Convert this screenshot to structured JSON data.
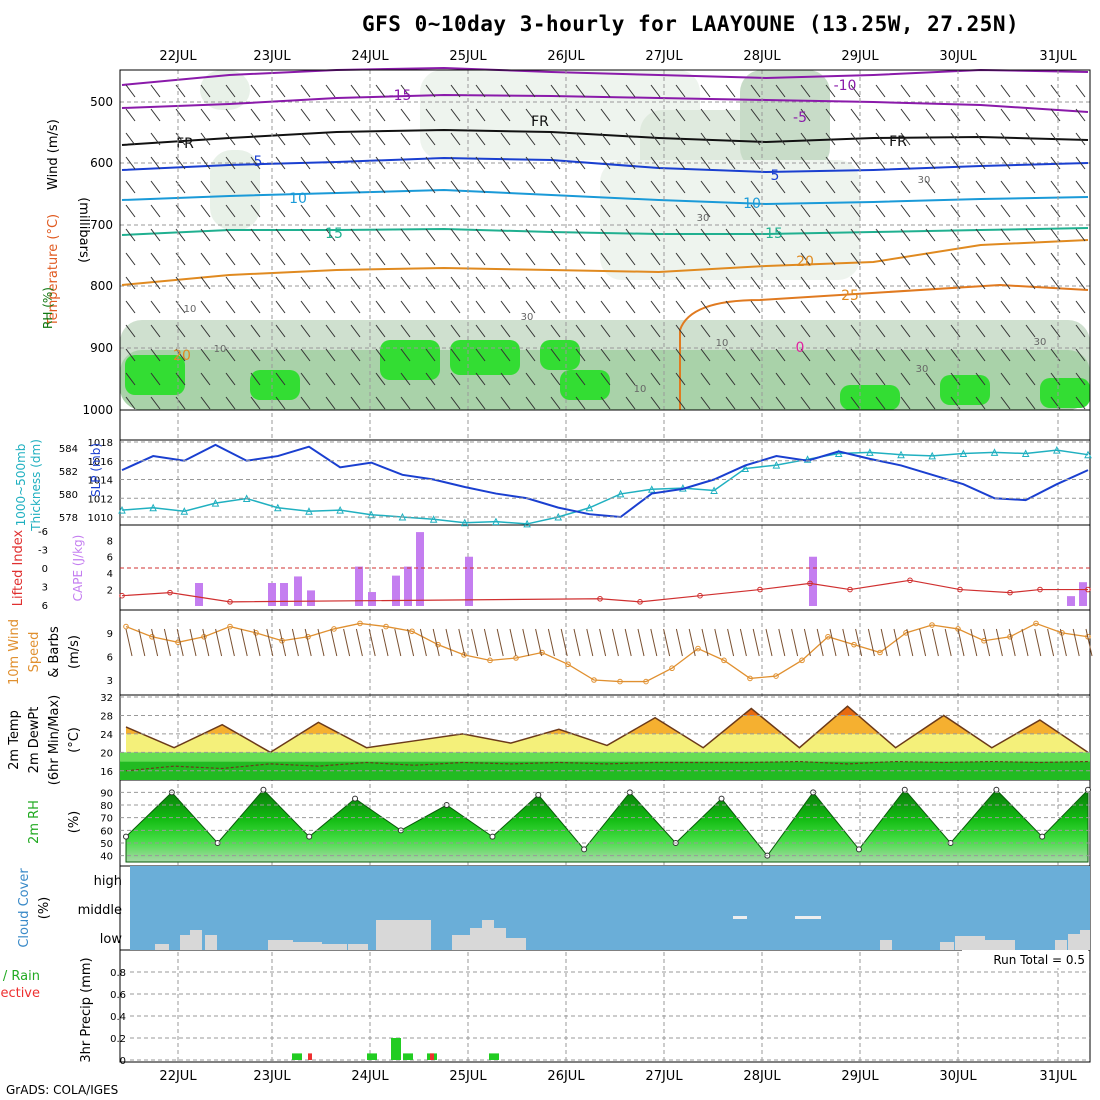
{
  "title": "GFS 0~10day 3-hourly for LAAYOUNE (13.25W, 27.25N)",
  "footer": "GrADS: COLA/IGES",
  "dates": [
    "22JUL",
    "23JUL",
    "24JUL",
    "25JUL",
    "26JUL",
    "27JUL",
    "28JUL",
    "29JUL",
    "30JUL",
    "31JUL"
  ],
  "panels": {
    "upper": {
      "ylabel_wind": "Wind (m/s)",
      "ylabel_temp": "Temperature (°C)",
      "ylabel_rh": "RH (%)",
      "ylabel_units": "(millibars)",
      "pressure_ticks": [
        "500",
        "600",
        "700",
        "800",
        "900",
        "1000"
      ],
      "temp_labels": [
        "-10",
        "-15",
        "-5",
        "FR",
        "FR",
        "FR",
        "5",
        "5",
        "10",
        "10",
        "15",
        "15",
        "20",
        "20",
        "25",
        "0"
      ],
      "rh_labels": [
        "10",
        "10",
        "30",
        "30",
        "30",
        "10",
        "30",
        "10",
        "30"
      ]
    },
    "slp": {
      "ylabel_left": "1000~500mb",
      "ylabel_left2": "Thickness (dm)",
      "ylabel_right": "SLP (mb)",
      "left_ticks": [
        "584",
        "582",
        "580",
        "578"
      ],
      "right_ticks": [
        "1018",
        "1016",
        "1014",
        "1012",
        "1010"
      ]
    },
    "cape": {
      "ylabel_li": "Lifted Index",
      "ylabel_cape": "CAPE (J/kg)",
      "li_ticks": [
        "-6",
        "-3",
        "0",
        "3",
        "6"
      ],
      "cape_ticks": [
        "8",
        "6",
        "4",
        "2"
      ]
    },
    "wind": {
      "ylabel1": "10m Wind",
      "ylabel2": "Speed",
      "ylabel3": "& Barbs",
      "ylabel4": "(m/s)",
      "ticks": [
        "9",
        "6",
        "3"
      ]
    },
    "temp": {
      "ylabel1": "2m Temp",
      "ylabel2": "2m DewPt",
      "ylabel3": "(6hr Min/Max)",
      "ylabel4": "(°C)",
      "ticks": [
        "32",
        "28",
        "24",
        "20",
        "16"
      ]
    },
    "rh": {
      "ylabel1": "2m RH",
      "ylabel2": "(%)",
      "ticks": [
        "90",
        "80",
        "70",
        "60",
        "50",
        "40"
      ]
    },
    "cloud": {
      "ylabel1": "Cloud Cover",
      "ylabel2": "(%)",
      "levels": [
        "high",
        "middle",
        "low"
      ]
    },
    "precip": {
      "ylabel1": "Total / Rain",
      "ylabel2": "Convective",
      "ylabel3": "3hr Precip (mm)",
      "ticks": [
        "0.8",
        "0.6",
        "0.4",
        "0.2",
        "0"
      ],
      "run_total": "Run Total = 0.5"
    }
  },
  "colors": {
    "slp": "#1a3fd0",
    "thickness": "#20b0c0",
    "cape_bar": "#c47ef0",
    "lifted_index": "#d03030",
    "wind_speed": "#e09030",
    "rh_green": "#22cc22",
    "cloud_bg": "#6aaed8",
    "cloud_low": "#d8d8d8",
    "precip_total": "#22cc22",
    "precip_conv": "#ee3030"
  },
  "chart_data": [
    {
      "type": "line",
      "title": "1000~500mb Thickness (dm) / SLP (mb)",
      "series": [
        {
          "name": "SLP (mb)",
          "values": [
            1015.0,
            1016.5,
            1016.0,
            1017.7,
            1016.0,
            1016.5,
            1017.5,
            1015.3,
            1015.8,
            1014.5,
            1014.0,
            1013.2,
            1012.5,
            1012.0,
            1011.0,
            1010.3,
            1010.0,
            1012.5,
            1013.0,
            1014.0,
            1015.5,
            1016.5,
            1016.0,
            1017.0,
            1016.2,
            1015.5,
            1014.5,
            1013.5,
            1012.0,
            1011.8,
            1013.5,
            1015.0
          ]
        },
        {
          "name": "1000~500mb Thickness (dm)",
          "values": [
            578.6,
            578.8,
            578.5,
            579.2,
            579.6,
            578.8,
            578.5,
            578.6,
            578.2,
            578.0,
            577.8,
            577.5,
            577.6,
            577.4,
            578.0,
            578.8,
            580.0,
            580.4,
            580.5,
            580.3,
            582.2,
            582.5,
            583.0,
            583.5,
            583.6,
            583.4,
            583.3,
            583.5,
            583.6,
            583.5,
            583.8,
            583.4
          ]
        }
      ]
    },
    {
      "type": "bar",
      "title": "CAPE (J/kg)",
      "categories": [
        "22JUL06",
        "23JUL03",
        "23JUL06",
        "23JUL09",
        "23JUL12",
        "24JUL00",
        "24JUL03",
        "24JUL09",
        "24JUL12",
        "24JUL15",
        "25JUL00",
        "28JUL12",
        "31JUL06",
        "31JUL09"
      ],
      "values": [
        2.8,
        2.8,
        2.8,
        3.6,
        1.9,
        4.8,
        1.7,
        3.7,
        4.8,
        9.0,
        6.0,
        6.0,
        1.2,
        2.9
      ]
    },
    {
      "type": "line",
      "title": "Lifted Index",
      "x": [
        "21JUL12",
        "22JUL00",
        "22JUL12",
        "26JUL12",
        "27JUL00",
        "27JUL12",
        "28JUL00",
        "28JUL12",
        "29JUL00",
        "29JUL12",
        "30JUL00",
        "30JUL12",
        "31JUL00",
        "31JUL12"
      ],
      "values": [
        4.5,
        4.0,
        5.5,
        5.0,
        5.5,
        4.5,
        3.5,
        2.5,
        3.5,
        2.0,
        3.5,
        4.0,
        3.5,
        3.5
      ]
    },
    {
      "type": "line",
      "title": "10m Wind Speed (m/s)",
      "values": [
        9.8,
        8.5,
        7.8,
        8.5,
        9.8,
        9.0,
        8.0,
        8.5,
        9.5,
        10.2,
        9.8,
        9.2,
        7.5,
        6.2,
        5.5,
        5.8,
        6.5,
        5.0,
        3.0,
        2.8,
        2.8,
        4.5,
        7.0,
        5.5,
        3.2,
        3.5,
        5.5,
        8.5,
        7.5,
        6.5,
        9.0,
        10.0,
        9.5,
        8.0,
        8.5,
        10.2,
        9.0,
        8.5
      ]
    },
    {
      "type": "area",
      "title": "2m Temp / 2m DewPt (°C)",
      "series": [
        {
          "name": "2m Temp",
          "values": [
            25.5,
            21.0,
            26.0,
            20.0,
            26.5,
            21.0,
            22.5,
            24.0,
            22.0,
            25.0,
            21.5,
            27.5,
            21.0,
            29.5,
            21.0,
            30.0,
            21.0,
            28.0,
            21.0,
            27.0,
            20.0
          ]
        },
        {
          "name": "2m DewPt",
          "values": [
            16.0,
            17.0,
            16.5,
            17.5,
            17.0,
            17.8,
            17.2,
            17.8,
            17.5,
            17.8,
            17.5,
            17.8,
            17.8,
            17.8,
            18.0,
            17.5,
            18.0,
            17.8,
            18.0,
            17.8,
            18.0
          ]
        }
      ],
      "ylim": [
        14,
        32
      ]
    },
    {
      "type": "area",
      "title": "2m RH (%)",
      "values": [
        55,
        90,
        50,
        92,
        55,
        85,
        60,
        80,
        55,
        88,
        45,
        90,
        50,
        85,
        40,
        90,
        45,
        92,
        50,
        92,
        55,
        92
      ],
      "ylim": [
        35,
        95
      ]
    },
    {
      "type": "bar",
      "title": "3hr Precip (mm)",
      "series": [
        {
          "name": "Total / Rain",
          "values": [
            0.06,
            0.06,
            0.2,
            0.06,
            0.06,
            0.06
          ]
        },
        {
          "name": "Convective",
          "values": [
            0.06,
            0.06
          ]
        }
      ],
      "ylim": [
        0,
        1.0
      ]
    }
  ]
}
